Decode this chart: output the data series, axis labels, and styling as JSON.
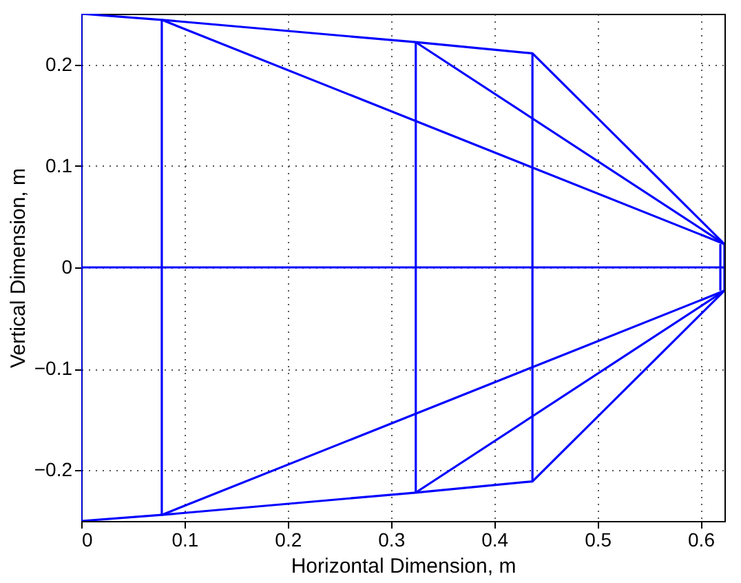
{
  "chart_data": {
    "type": "line",
    "xlabel": "Horizontal Dimension, m",
    "ylabel": "Vertical Dimension, m",
    "xlim": [
      0,
      0.623
    ],
    "ylim": [
      -0.25,
      0.25
    ],
    "xticks": [
      0,
      0.1,
      0.2,
      0.3,
      0.4,
      0.5,
      0.6
    ],
    "yticks": [
      -0.2,
      -0.1,
      0,
      0.1,
      0.2
    ],
    "grid": true,
    "line_style": "solid",
    "marker": "none",
    "legend": false,
    "series": [
      {
        "color": "#0000ff",
        "x": [
          0,
          0.078,
          0.324,
          0.437,
          0.623
        ],
        "values": [
          0.25,
          0.244,
          0.222,
          0.211,
          0.023
        ]
      },
      {
        "color": "#0000ff",
        "x": [
          0,
          0.078,
          0.324,
          0.437,
          0.623
        ],
        "values": [
          -0.25,
          -0.244,
          -0.222,
          -0.211,
          -0.023
        ]
      },
      {
        "color": "#0000ff",
        "x": [
          0,
          0.623
        ],
        "values": [
          0,
          0
        ]
      },
      {
        "color": "#0000ff",
        "x": [
          0,
          0
        ],
        "values": [
          0.25,
          -0.25
        ]
      },
      {
        "color": "#0000ff",
        "x": [
          0.078,
          0.078
        ],
        "values": [
          0.244,
          -0.244
        ]
      },
      {
        "color": "#0000ff",
        "x": [
          0.324,
          0.324
        ],
        "values": [
          0.222,
          -0.222
        ]
      },
      {
        "color": "#0000ff",
        "x": [
          0.437,
          0.437
        ],
        "values": [
          0.211,
          -0.211
        ]
      },
      {
        "color": "#0000ff",
        "x": [
          0.078,
          0.623
        ],
        "values": [
          0.244,
          0.023
        ]
      },
      {
        "color": "#0000ff",
        "x": [
          0.324,
          0.623
        ],
        "values": [
          0.222,
          0.023
        ]
      },
      {
        "color": "#0000ff",
        "x": [
          0.078,
          0.623
        ],
        "values": [
          -0.244,
          -0.023
        ]
      },
      {
        "color": "#0000ff",
        "x": [
          0.324,
          0.623
        ],
        "values": [
          -0.222,
          -0.023
        ]
      },
      {
        "color": "#0000ff",
        "x": [
          0.619,
          0.619
        ],
        "values": [
          0.023,
          -0.023
        ]
      },
      {
        "color": "#0000ff",
        "x": [
          0.623,
          0.623
        ],
        "values": [
          0.023,
          -0.023
        ]
      }
    ]
  }
}
